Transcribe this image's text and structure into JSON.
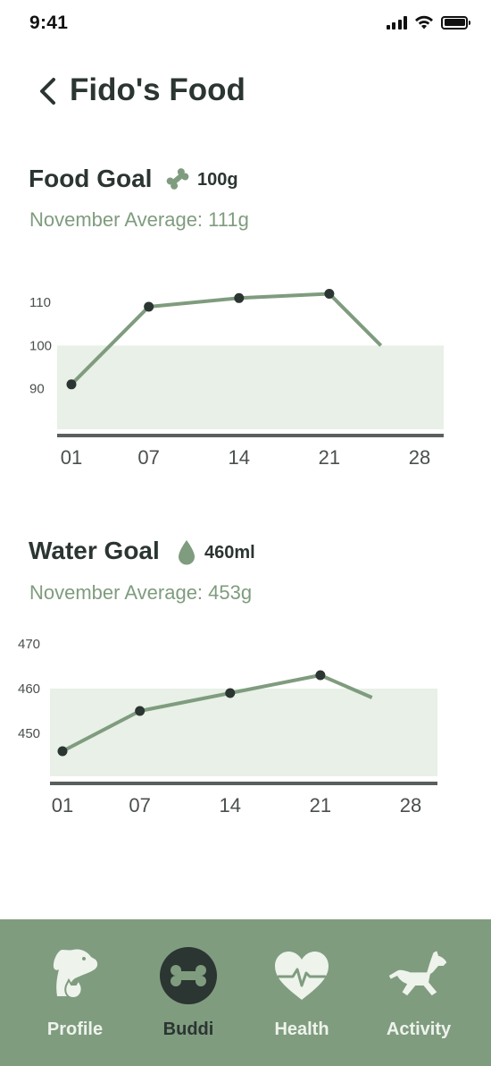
{
  "status_bar": {
    "time": "9:41"
  },
  "header": {
    "title": "Fido's Food"
  },
  "food": {
    "title": "Food Goal",
    "goal_icon": "bone-icon",
    "amount": "100g",
    "average": "November Average: 111g",
    "chart_data": {
      "type": "line",
      "x": [
        "01",
        "07",
        "14",
        "21",
        "25"
      ],
      "y": [
        91,
        109,
        111,
        112,
        100
      ],
      "marked_points": [
        "01",
        "07",
        "14",
        "21"
      ],
      "x_ticks": [
        "01",
        "07",
        "14",
        "21",
        "28"
      ],
      "y_ticks": [
        90,
        100,
        110
      ],
      "goal": 100,
      "ylim": [
        75,
        115
      ],
      "title": "",
      "xlabel": "",
      "ylabel": ""
    }
  },
  "water": {
    "title": "Water Goal",
    "goal_icon": "water-drop-icon",
    "amount": "460ml",
    "average": "November Average: 453g",
    "chart_data": {
      "type": "line",
      "x": [
        "01",
        "07",
        "14",
        "21",
        "25"
      ],
      "y": [
        446,
        455,
        459,
        463,
        458
      ],
      "marked_points": [
        "01",
        "07",
        "14",
        "21"
      ],
      "x_ticks": [
        "01",
        "07",
        "14",
        "21",
        "28"
      ],
      "y_ticks": [
        450,
        460,
        470
      ],
      "goal": 460,
      "ylim": [
        425,
        470
      ],
      "title": "",
      "xlabel": "",
      "ylabel": ""
    }
  },
  "colors": {
    "accent": "#7f9c7f",
    "line": "#7f9c7e",
    "goal_band": "#e8f0e7",
    "point": "#2b3532"
  },
  "nav": {
    "items": [
      {
        "label": "Profile",
        "icon": "pet-profile-icon"
      },
      {
        "label": "Buddi",
        "icon": "bone-icon",
        "active": true
      },
      {
        "label": "Health",
        "icon": "heartbeat-icon"
      },
      {
        "label": "Activity",
        "icon": "running-dog-icon"
      }
    ]
  }
}
